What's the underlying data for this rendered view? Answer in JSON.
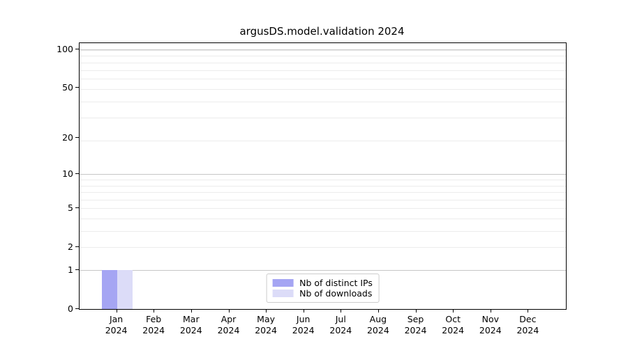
{
  "chart_data": {
    "type": "bar",
    "title": "argusDS.model.validation 2024",
    "categories": [
      "Jan 2024",
      "Feb 2024",
      "Mar 2024",
      "Apr 2024",
      "May 2024",
      "Jun 2024",
      "Jul 2024",
      "Aug 2024",
      "Sep 2024",
      "Oct 2024",
      "Nov 2024",
      "Dec 2024"
    ],
    "x_tick_months": [
      "Jan",
      "Feb",
      "Mar",
      "Apr",
      "May",
      "Jun",
      "Jul",
      "Aug",
      "Sep",
      "Oct",
      "Nov",
      "Dec"
    ],
    "x_tick_year": "2024",
    "series": [
      {
        "name": "Nb of distinct IPs",
        "color": "#a5a5f3",
        "values": [
          1,
          0,
          0,
          0,
          0,
          0,
          0,
          0,
          0,
          0,
          0,
          0
        ]
      },
      {
        "name": "Nb of downloads",
        "color": "#dcdcf8",
        "values": [
          1,
          0,
          0,
          0,
          0,
          0,
          0,
          0,
          0,
          0,
          0,
          0
        ]
      }
    ],
    "xlabel": "",
    "ylabel": "",
    "yscale": "log1p",
    "ylim": [
      0,
      112
    ],
    "yticks": [
      0,
      1,
      2,
      5,
      10,
      20,
      50,
      100
    ],
    "major_gridline_values": [
      1,
      10,
      100
    ],
    "minor_gridline_steps": [
      2,
      3,
      4,
      5,
      6,
      7,
      8,
      9,
      10,
      20,
      30,
      40,
      50,
      60,
      70,
      80,
      90,
      100
    ],
    "grid": "horizontal major+minor",
    "legend_position": "lower center",
    "colors": {
      "axis": "#000000",
      "major_grid": "#c6c6c6",
      "minor_grid": "#ececec",
      "background": "#ffffff"
    }
  }
}
